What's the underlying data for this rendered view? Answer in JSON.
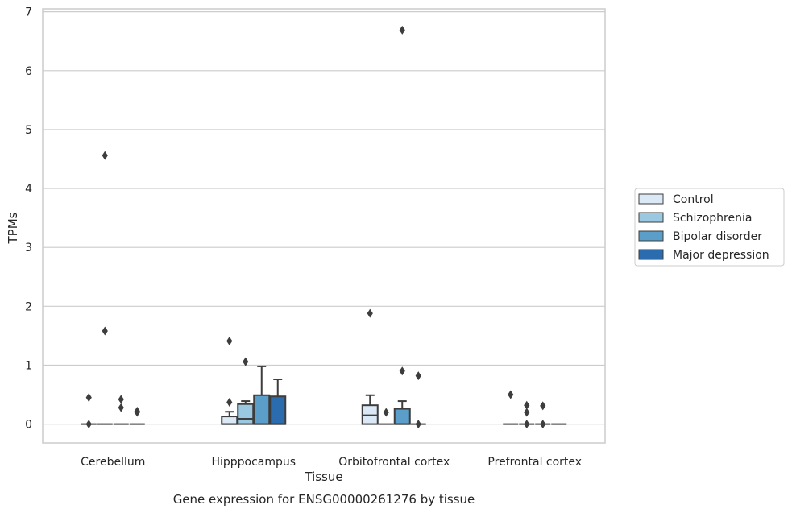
{
  "chart_data": {
    "type": "box",
    "title": "",
    "caption": "Gene expression for ENSG00000261276 by tissue",
    "xlabel": "Tissue",
    "ylabel": "TPMs",
    "ylim": [
      -0.32,
      7.05
    ],
    "yticks": [
      0,
      1,
      2,
      3,
      4,
      5,
      6,
      7
    ],
    "grid": "horizontal",
    "legend_position": "right",
    "categories": [
      "Cerebellum",
      "Hipppocampus",
      "Orbitofrontal cortex",
      "Prefrontal cortex"
    ],
    "series": [
      {
        "name": "Control",
        "color": "#dbe9f6"
      },
      {
        "name": "Schizophrenia",
        "color": "#9ac8e0"
      },
      {
        "name": "Bipolar disorder",
        "color": "#5a9ec9"
      },
      {
        "name": "Major depression",
        "color": "#2a6cad"
      }
    ],
    "boxes": [
      [
        {
          "q1": 0,
          "median": 0,
          "q3": 0,
          "whislo": 0,
          "whishi": 0,
          "fliers": [
            0.45,
            0.0
          ]
        },
        {
          "q1": 0,
          "median": 0,
          "q3": 0,
          "whislo": 0,
          "whishi": 0,
          "fliers": [
            4.56,
            1.58
          ]
        },
        {
          "q1": 0,
          "median": 0,
          "q3": 0,
          "whislo": 0,
          "whishi": 0,
          "fliers": [
            0.42,
            0.28
          ]
        },
        {
          "q1": 0,
          "median": 0,
          "q3": 0,
          "whislo": 0,
          "whishi": 0,
          "fliers": [
            0.22,
            0.2
          ]
        }
      ],
      [
        {
          "q1": 0,
          "median": 0,
          "q3": 0.13,
          "whislo": 0,
          "whishi": 0.21,
          "fliers": [
            1.41,
            0.37
          ]
        },
        {
          "q1": 0,
          "median": 0.09,
          "q3": 0.34,
          "whislo": 0,
          "whishi": 0.39,
          "fliers": [
            1.06
          ]
        },
        {
          "q1": 0,
          "median": 0,
          "q3": 0.49,
          "whislo": 0,
          "whishi": 0.98,
          "fliers": []
        },
        {
          "q1": 0,
          "median": 0,
          "q3": 0.47,
          "whislo": 0,
          "whishi": 0.76,
          "fliers": []
        }
      ],
      [
        {
          "q1": 0,
          "median": 0.15,
          "q3": 0.32,
          "whislo": 0,
          "whishi": 0.49,
          "fliers": [
            1.88
          ]
        },
        {
          "q1": 0,
          "median": 0,
          "q3": 0,
          "whislo": 0,
          "whishi": 0,
          "fliers": [
            0.2
          ]
        },
        {
          "q1": 0,
          "median": 0,
          "q3": 0.26,
          "whislo": 0,
          "whishi": 0.39,
          "fliers": [
            6.69,
            0.9
          ]
        },
        {
          "q1": 0,
          "median": 0,
          "q3": 0,
          "whislo": 0,
          "whishi": 0,
          "fliers": [
            0.82,
            0.0
          ]
        }
      ],
      [
        {
          "q1": 0,
          "median": 0,
          "q3": 0,
          "whislo": 0,
          "whishi": 0,
          "fliers": [
            0.5
          ]
        },
        {
          "q1": 0,
          "median": 0,
          "q3": 0,
          "whislo": 0,
          "whishi": 0,
          "fliers": [
            0.32,
            0.2,
            0.0
          ]
        },
        {
          "q1": 0,
          "median": 0,
          "q3": 0,
          "whislo": 0,
          "whishi": 0,
          "fliers": [
            0.31,
            0.0
          ]
        },
        {
          "q1": 0,
          "median": 0,
          "q3": 0,
          "whislo": 0,
          "whishi": 0,
          "fliers": []
        }
      ]
    ]
  },
  "colors": {
    "grid": "#cccccc",
    "frame": "#cccccc",
    "box_edge": "#3d3d3d"
  }
}
